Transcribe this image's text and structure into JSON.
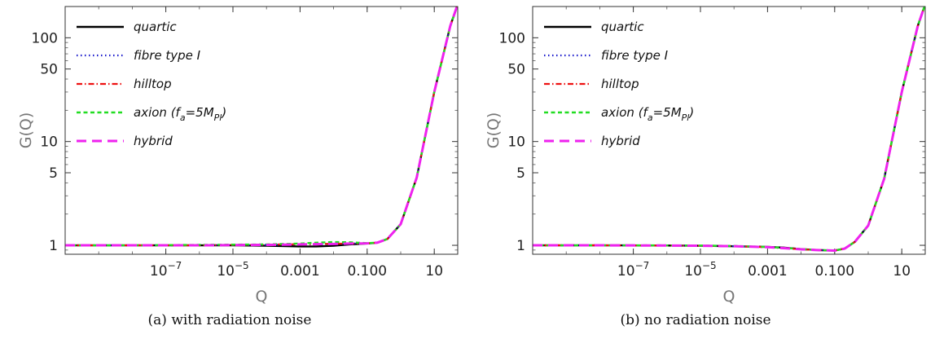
{
  "chart_data": [
    {
      "type": "line",
      "caption": "(a) with radiation noise",
      "xlabel": "Q",
      "ylabel": "G(Q)",
      "xscale": "log",
      "yscale": "log",
      "xlim": [
        1e-10,
        50
      ],
      "ylim": [
        0.82,
        200
      ],
      "xticks": [
        {
          "v": 1e-07,
          "base": "10",
          "exp": "−7"
        },
        {
          "v": 1e-05,
          "base": "10",
          "exp": "−5"
        },
        {
          "v": 0.001,
          "label": "0.001"
        },
        {
          "v": 0.1,
          "label": "0.100"
        },
        {
          "v": 10,
          "label": "10"
        }
      ],
      "yticks": [
        {
          "v": 1,
          "label": "1"
        },
        {
          "v": 5,
          "label": "5"
        },
        {
          "v": 10,
          "label": "10"
        },
        {
          "v": 50,
          "label": "50"
        },
        {
          "v": 100,
          "label": "100"
        }
      ],
      "legend_position": "top-left",
      "series": [
        {
          "name": "quartic",
          "color": "#000000",
          "dash": "solid",
          "x": [
            1e-10,
            1e-08,
            1e-06,
            1e-05,
            0.0001,
            0.001,
            0.003,
            0.01,
            0.03,
            0.1,
            0.2,
            0.4,
            1,
            3,
            10,
            30,
            50
          ],
          "y": [
            1.0,
            1.0,
            1.0,
            1.0,
            0.99,
            0.975,
            0.975,
            0.99,
            1.02,
            1.04,
            1.06,
            1.15,
            1.6,
            4.5,
            30,
            130,
            210
          ]
        },
        {
          "name": "fibre type I",
          "color": "#1a1acc",
          "dash": "dotted",
          "x": [
            1e-10,
            1e-08,
            1e-06,
            1e-05,
            0.0001,
            0.001,
            0.003,
            0.01,
            0.03,
            0.1,
            0.2,
            0.4,
            1,
            3,
            10,
            30,
            50
          ],
          "y": [
            1.0,
            1.0,
            1.0,
            1.005,
            1.01,
            1.02,
            1.025,
            1.03,
            1.04,
            1.045,
            1.06,
            1.15,
            1.6,
            4.5,
            30,
            130,
            210
          ]
        },
        {
          "name": "hilltop",
          "color": "#ee1111",
          "dash": "dashdot",
          "x": [
            1e-10,
            1e-08,
            1e-06,
            1e-05,
            0.0001,
            0.001,
            0.003,
            0.01,
            0.03,
            0.1,
            0.2,
            0.4,
            1,
            3,
            10,
            30,
            50
          ],
          "y": [
            1.0,
            1.0,
            1.0,
            1.01,
            1.015,
            1.025,
            1.03,
            1.035,
            1.04,
            1.045,
            1.06,
            1.15,
            1.6,
            4.5,
            30,
            130,
            210
          ]
        },
        {
          "name": "axion",
          "color": "#22dd22",
          "dash": "dashed",
          "x": [
            1e-10,
            1e-08,
            1e-06,
            1e-05,
            0.0001,
            0.001,
            0.003,
            0.01,
            0.03,
            0.1,
            0.2,
            0.4,
            1,
            3,
            10,
            30,
            50
          ],
          "y": [
            1.0,
            1.0,
            1.01,
            1.015,
            1.02,
            1.04,
            1.06,
            1.075,
            1.07,
            1.05,
            1.06,
            1.15,
            1.6,
            4.5,
            30,
            130,
            210
          ]
        },
        {
          "name": "hybrid",
          "color": "#ee22ee",
          "dash": "longdash",
          "x": [
            1e-10,
            1e-08,
            1e-06,
            1e-05,
            0.0001,
            0.001,
            0.003,
            0.01,
            0.03,
            0.1,
            0.2,
            0.4,
            1,
            3,
            10,
            30,
            50
          ],
          "y": [
            1.0,
            1.0,
            1.0,
            1.005,
            1.01,
            1.02,
            1.025,
            1.03,
            1.04,
            1.045,
            1.06,
            1.15,
            1.6,
            4.5,
            30,
            130,
            210
          ]
        }
      ]
    },
    {
      "type": "line",
      "caption": "(b) no radiation noise",
      "xlabel": "Q",
      "ylabel": "G(Q)",
      "xscale": "log",
      "yscale": "log",
      "xlim": [
        1e-10,
        50
      ],
      "ylim": [
        0.82,
        200
      ],
      "xticks": [
        {
          "v": 1e-07,
          "base": "10",
          "exp": "−7"
        },
        {
          "v": 1e-05,
          "base": "10",
          "exp": "−5"
        },
        {
          "v": 0.001,
          "label": "0.001"
        },
        {
          "v": 0.1,
          "label": "0.100"
        },
        {
          "v": 10,
          "label": "10"
        }
      ],
      "yticks": [
        {
          "v": 1,
          "label": "1"
        },
        {
          "v": 5,
          "label": "5"
        },
        {
          "v": 10,
          "label": "10"
        },
        {
          "v": 50,
          "label": "50"
        },
        {
          "v": 100,
          "label": "100"
        }
      ],
      "legend_position": "top-left",
      "series": [
        {
          "name": "quartic",
          "color": "#000000",
          "dash": "solid",
          "x": [
            1e-10,
            1e-08,
            1e-06,
            1e-05,
            0.0001,
            0.001,
            0.003,
            0.01,
            0.03,
            0.1,
            0.2,
            0.4,
            1,
            3,
            10,
            30,
            50
          ],
          "y": [
            1.0,
            1.0,
            0.995,
            0.99,
            0.98,
            0.965,
            0.95,
            0.92,
            0.9,
            0.89,
            0.93,
            1.08,
            1.55,
            4.4,
            30,
            130,
            210
          ]
        },
        {
          "name": "fibre type I",
          "color": "#1a1acc",
          "dash": "dotted",
          "x": [
            1e-10,
            1e-08,
            1e-06,
            1e-05,
            0.0001,
            0.001,
            0.003,
            0.01,
            0.03,
            0.1,
            0.2,
            0.4,
            1,
            3,
            10,
            30,
            50
          ],
          "y": [
            1.0,
            1.0,
            0.995,
            0.99,
            0.98,
            0.96,
            0.94,
            0.915,
            0.9,
            0.89,
            0.93,
            1.08,
            1.55,
            4.4,
            30,
            130,
            210
          ]
        },
        {
          "name": "hilltop",
          "color": "#ee1111",
          "dash": "dashdot",
          "x": [
            1e-10,
            1e-08,
            1e-06,
            1e-05,
            0.0001,
            0.001,
            0.003,
            0.01,
            0.03,
            0.1,
            0.2,
            0.4,
            1,
            3,
            10,
            30,
            50
          ],
          "y": [
            1.0,
            1.0,
            0.995,
            0.99,
            0.98,
            0.96,
            0.94,
            0.915,
            0.9,
            0.89,
            0.93,
            1.08,
            1.55,
            4.4,
            30,
            130,
            210
          ]
        },
        {
          "name": "axion",
          "color": "#22dd22",
          "dash": "dashed",
          "x": [
            1e-10,
            1e-08,
            1e-06,
            1e-05,
            0.0001,
            0.001,
            0.003,
            0.01,
            0.03,
            0.1,
            0.2,
            0.4,
            1,
            3,
            10,
            30,
            50
          ],
          "y": [
            1.0,
            1.0,
            0.998,
            0.995,
            0.985,
            0.965,
            0.945,
            0.92,
            0.9,
            0.89,
            0.93,
            1.08,
            1.55,
            4.4,
            30,
            130,
            210
          ]
        },
        {
          "name": "hybrid",
          "color": "#ee22ee",
          "dash": "longdash",
          "x": [
            1e-10,
            1e-08,
            1e-06,
            1e-05,
            0.0001,
            0.001,
            0.003,
            0.01,
            0.03,
            0.1,
            0.2,
            0.4,
            1,
            3,
            10,
            30,
            50
          ],
          "y": [
            1.0,
            1.0,
            0.995,
            0.99,
            0.98,
            0.96,
            0.94,
            0.915,
            0.9,
            0.89,
            0.93,
            1.08,
            1.55,
            4.4,
            30,
            130,
            210
          ]
        }
      ]
    }
  ]
}
